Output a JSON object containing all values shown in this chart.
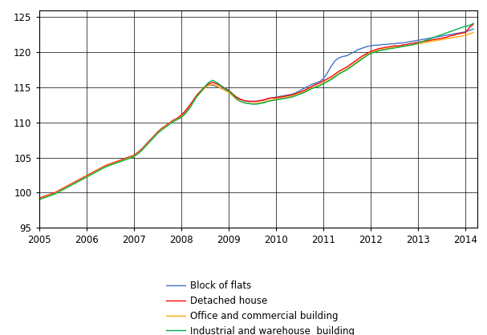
{
  "title": "",
  "xlabel": "",
  "ylabel": "",
  "ylim": [
    95,
    126
  ],
  "yticks": [
    95,
    100,
    105,
    110,
    115,
    120,
    125
  ],
  "xlim": [
    2005.0,
    2014.25
  ],
  "xtick_labels": [
    "2005",
    "2006",
    "2007",
    "2008",
    "2009",
    "2010",
    "2011",
    "2012",
    "2013",
    "2014"
  ],
  "xtick_positions": [
    2005,
    2006,
    2007,
    2008,
    2009,
    2010,
    2011,
    2012,
    2013,
    2014
  ],
  "colors": {
    "block_of_flats": "#4472C4",
    "detached_house": "#FF0000",
    "office_commercial": "#FFA500",
    "industrial_warehouse": "#00B050"
  },
  "legend_labels": [
    "Block of flats",
    "Detached house",
    "Office and commercial building",
    "Industrial and warehouse  building"
  ],
  "grid": true,
  "linewidth": 1.0,
  "figsize": [
    6.07,
    4.18
  ],
  "dpi": 100,
  "series": {
    "x": [
      2005.0,
      2005.083,
      2005.167,
      2005.25,
      2005.333,
      2005.417,
      2005.5,
      2005.583,
      2005.667,
      2005.75,
      2005.833,
      2005.917,
      2006.0,
      2006.083,
      2006.167,
      2006.25,
      2006.333,
      2006.417,
      2006.5,
      2006.583,
      2006.667,
      2006.75,
      2006.833,
      2006.917,
      2007.0,
      2007.083,
      2007.167,
      2007.25,
      2007.333,
      2007.417,
      2007.5,
      2007.583,
      2007.667,
      2007.75,
      2007.833,
      2007.917,
      2008.0,
      2008.083,
      2008.167,
      2008.25,
      2008.333,
      2008.417,
      2008.5,
      2008.583,
      2008.667,
      2008.75,
      2008.833,
      2008.917,
      2009.0,
      2009.083,
      2009.167,
      2009.25,
      2009.333,
      2009.417,
      2009.5,
      2009.583,
      2009.667,
      2009.75,
      2009.833,
      2009.917,
      2010.0,
      2010.083,
      2010.167,
      2010.25,
      2010.333,
      2010.417,
      2010.5,
      2010.583,
      2010.667,
      2010.75,
      2010.833,
      2010.917,
      2011.0,
      2011.083,
      2011.167,
      2011.25,
      2011.333,
      2011.417,
      2011.5,
      2011.583,
      2011.667,
      2011.75,
      2011.833,
      2011.917,
      2012.0,
      2012.083,
      2012.167,
      2012.25,
      2012.333,
      2012.417,
      2012.5,
      2012.583,
      2012.667,
      2012.75,
      2012.833,
      2012.917,
      2013.0,
      2013.083,
      2013.167,
      2013.25,
      2013.333,
      2013.417,
      2013.5,
      2013.583,
      2013.667,
      2013.75,
      2013.833,
      2013.917,
      2014.0,
      2014.083,
      2014.167
    ],
    "block_of_flats": [
      99.2,
      99.4,
      99.5,
      99.7,
      99.9,
      100.2,
      100.5,
      100.8,
      101.1,
      101.4,
      101.7,
      102.0,
      102.3,
      102.6,
      102.9,
      103.2,
      103.5,
      103.8,
      104.0,
      104.2,
      104.4,
      104.7,
      104.9,
      105.1,
      105.3,
      105.7,
      106.2,
      106.8,
      107.4,
      108.0,
      108.6,
      109.1,
      109.5,
      109.9,
      110.3,
      110.6,
      111.0,
      111.5,
      112.2,
      113.0,
      113.8,
      114.4,
      115.0,
      115.3,
      115.3,
      115.1,
      114.9,
      114.7,
      114.4,
      114.0,
      113.6,
      113.3,
      113.1,
      113.0,
      113.0,
      113.0,
      113.1,
      113.2,
      113.4,
      113.5,
      113.6,
      113.7,
      113.8,
      113.9,
      114.0,
      114.2,
      114.5,
      114.8,
      115.1,
      115.4,
      115.6,
      115.8,
      116.2,
      117.0,
      118.0,
      118.8,
      119.2,
      119.4,
      119.5,
      119.8,
      120.1,
      120.4,
      120.6,
      120.8,
      120.9,
      121.0,
      121.0,
      121.1,
      121.1,
      121.2,
      121.2,
      121.3,
      121.3,
      121.4,
      121.5,
      121.6,
      121.7,
      121.8,
      121.9,
      122.0,
      122.1,
      122.2,
      122.3,
      122.4,
      122.5,
      122.6,
      122.7,
      122.8,
      122.9,
      123.1,
      123.3
    ],
    "detached_house": [
      99.2,
      99.4,
      99.6,
      99.8,
      100.0,
      100.3,
      100.6,
      100.9,
      101.2,
      101.5,
      101.8,
      102.1,
      102.4,
      102.7,
      103.0,
      103.3,
      103.6,
      103.9,
      104.1,
      104.3,
      104.5,
      104.7,
      104.9,
      105.1,
      105.3,
      105.7,
      106.2,
      106.8,
      107.4,
      108.0,
      108.6,
      109.1,
      109.5,
      109.9,
      110.3,
      110.6,
      111.0,
      111.6,
      112.3,
      113.1,
      113.9,
      114.5,
      115.1,
      115.5,
      115.7,
      115.5,
      115.2,
      114.9,
      114.6,
      114.1,
      113.6,
      113.3,
      113.1,
      113.0,
      113.0,
      113.0,
      113.1,
      113.2,
      113.4,
      113.5,
      113.5,
      113.6,
      113.7,
      113.8,
      113.9,
      114.1,
      114.3,
      114.5,
      114.8,
      115.1,
      115.4,
      115.6,
      115.9,
      116.2,
      116.5,
      116.9,
      117.3,
      117.6,
      117.9,
      118.3,
      118.7,
      119.1,
      119.5,
      119.8,
      120.1,
      120.3,
      120.5,
      120.6,
      120.7,
      120.8,
      120.9,
      120.9,
      121.0,
      121.1,
      121.2,
      121.3,
      121.4,
      121.5,
      121.6,
      121.7,
      121.8,
      121.9,
      122.0,
      122.1,
      122.3,
      122.4,
      122.6,
      122.7,
      122.8,
      123.5,
      124.0
    ],
    "office_commercial": [
      99.1,
      99.3,
      99.5,
      99.7,
      99.9,
      100.2,
      100.5,
      100.8,
      101.1,
      101.4,
      101.7,
      102.0,
      102.3,
      102.6,
      102.9,
      103.2,
      103.5,
      103.8,
      104.0,
      104.2,
      104.4,
      104.6,
      104.8,
      105.0,
      105.2,
      105.6,
      106.1,
      106.7,
      107.3,
      107.9,
      108.5,
      109.0,
      109.4,
      109.8,
      110.2,
      110.5,
      110.8,
      111.3,
      112.0,
      112.9,
      113.7,
      114.3,
      114.9,
      115.3,
      115.4,
      115.2,
      114.9,
      114.6,
      114.3,
      113.8,
      113.3,
      113.0,
      112.8,
      112.7,
      112.7,
      112.7,
      112.8,
      112.9,
      113.1,
      113.2,
      113.3,
      113.4,
      113.5,
      113.6,
      113.7,
      113.9,
      114.1,
      114.3,
      114.6,
      114.9,
      115.1,
      115.3,
      115.6,
      115.9,
      116.2,
      116.6,
      117.0,
      117.3,
      117.6,
      118.0,
      118.4,
      118.8,
      119.2,
      119.6,
      119.9,
      120.1,
      120.3,
      120.4,
      120.5,
      120.6,
      120.7,
      120.7,
      120.8,
      120.9,
      121.0,
      121.1,
      121.2,
      121.3,
      121.4,
      121.5,
      121.6,
      121.7,
      121.8,
      121.9,
      122.0,
      122.1,
      122.2,
      122.3,
      122.4,
      122.6,
      122.8
    ],
    "industrial_warehouse": [
      99.0,
      99.2,
      99.4,
      99.6,
      99.8,
      100.1,
      100.4,
      100.7,
      101.0,
      101.3,
      101.6,
      101.9,
      102.2,
      102.5,
      102.8,
      103.1,
      103.4,
      103.7,
      103.9,
      104.1,
      104.3,
      104.5,
      104.7,
      104.9,
      105.1,
      105.5,
      106.0,
      106.6,
      107.2,
      107.8,
      108.4,
      108.9,
      109.3,
      109.7,
      110.1,
      110.4,
      110.7,
      111.2,
      111.9,
      112.8,
      113.7,
      114.4,
      115.1,
      115.7,
      116.0,
      115.7,
      115.3,
      114.9,
      114.5,
      114.0,
      113.4,
      113.0,
      112.8,
      112.7,
      112.6,
      112.6,
      112.7,
      112.8,
      113.0,
      113.1,
      113.2,
      113.3,
      113.4,
      113.5,
      113.6,
      113.8,
      114.0,
      114.2,
      114.5,
      114.8,
      115.0,
      115.2,
      115.5,
      115.8,
      116.1,
      116.5,
      116.9,
      117.2,
      117.5,
      117.9,
      118.3,
      118.7,
      119.1,
      119.5,
      119.8,
      120.0,
      120.2,
      120.3,
      120.4,
      120.5,
      120.6,
      120.7,
      120.8,
      120.9,
      121.0,
      121.1,
      121.3,
      121.5,
      121.7,
      121.9,
      122.1,
      122.3,
      122.5,
      122.7,
      122.9,
      123.1,
      123.3,
      123.5,
      123.7,
      123.8,
      124.1
    ]
  }
}
